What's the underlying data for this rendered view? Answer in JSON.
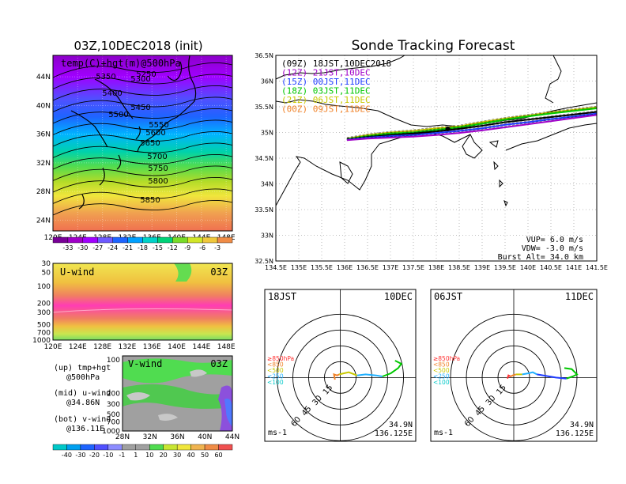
{
  "left_title": "03Z,10DEC2018 (init)",
  "right_title": "Sonde Tracking Forecast",
  "colors": {
    "c09": "#000000",
    "c12": "#a000c8",
    "c15": "#1e3cff",
    "c18": "#00c800",
    "c21": "#c8c800",
    "c00": "#f08228"
  },
  "chart_data": [
    {
      "id": "map500",
      "type": "heatmap",
      "title": "temp(C)+hgt(m)@500hPa",
      "x_ticks": [
        "120E",
        "124E",
        "128E",
        "132E",
        "136E",
        "140E",
        "144E",
        "148E"
      ],
      "y_ticks": [
        "44N",
        "40N",
        "36N",
        "32N",
        "28N",
        "24N"
      ],
      "xlim": [
        120,
        149
      ],
      "ylim": [
        22.5,
        47
      ],
      "contour_labels": [
        "5250",
        "5300",
        "5350",
        "5400",
        "5450",
        "5500",
        "5550",
        "5600",
        "5650",
        "5700",
        "5750",
        "5800",
        "5850"
      ],
      "colorbar_labels": [
        "-33",
        "-30",
        "-27",
        "-24",
        "-21",
        "-18",
        "-15",
        "-12",
        "-9",
        "-6",
        "-3"
      ]
    },
    {
      "id": "uwind",
      "type": "heatmap",
      "title": "U-wind",
      "time_label": "03Z",
      "y_ticks": [
        "30",
        "50",
        "100",
        "200",
        "300",
        "500",
        "700",
        "1000"
      ],
      "x_ticks": [
        "120E",
        "124E",
        "128E",
        "132E",
        "136E",
        "140E",
        "144E",
        "148E"
      ]
    },
    {
      "id": "vwind",
      "type": "heatmap",
      "title": "V-wind",
      "time_label": "03Z",
      "y_ticks": [
        "100",
        "200",
        "300",
        "500",
        "700",
        "1000"
      ],
      "x_ticks": [
        "28N",
        "32N",
        "36N",
        "40N",
        "44N"
      ],
      "colorbar_labels": [
        "-40",
        "-30",
        "-20",
        "-10",
        "-1",
        "1",
        "10",
        "20",
        "30",
        "40",
        "50",
        "60"
      ]
    },
    {
      "id": "track",
      "type": "line",
      "x_ticks": [
        "134.5E",
        "135E",
        "135.5E",
        "136E",
        "136.5E",
        "137E",
        "137.5E",
        "138E",
        "138.5E",
        "139E",
        "139.5E",
        "140E",
        "140.5E",
        "141E",
        "141.5E"
      ],
      "y_ticks": [
        "36.5N",
        "36N",
        "35.5N",
        "35N",
        "34.5N",
        "34N",
        "33.5N",
        "33N",
        "32.5N"
      ],
      "xlim": [
        134.5,
        141.5
      ],
      "ylim": [
        32.5,
        36.5
      ],
      "legend": [
        {
          "label": "(09Z)  18JST,10DEC2018",
          "key": "c09"
        },
        {
          "label": "(12Z)  21JST,10DEC",
          "key": "c12"
        },
        {
          "label": "(15Z)  00JST,11DEC",
          "key": "c15"
        },
        {
          "label": "(18Z)  03JST,11DEC",
          "key": "c18"
        },
        {
          "label": "(21Z)  06JST,11DEC",
          "key": "c21"
        },
        {
          "label": "(00Z)  09JST,11DEC",
          "key": "c00"
        }
      ],
      "series": [
        {
          "key": "c21",
          "x": [
            136.05,
            136.5,
            137.0,
            137.5,
            138.0,
            138.5,
            139.0,
            139.5,
            140.0,
            140.5,
            141.0,
            141.5
          ],
          "y": [
            34.88,
            34.95,
            35.0,
            35.03,
            35.08,
            35.12,
            35.2,
            35.27,
            35.33,
            35.39,
            35.44,
            35.49
          ]
        },
        {
          "key": "c18",
          "x": [
            136.05,
            136.5,
            137.0,
            137.5,
            138.0,
            138.5,
            139.0,
            139.5,
            140.0,
            140.5,
            141.0,
            141.5
          ],
          "y": [
            34.87,
            34.93,
            34.98,
            35.0,
            35.05,
            35.1,
            35.17,
            35.25,
            35.31,
            35.37,
            35.42,
            35.47
          ]
        },
        {
          "key": "c09",
          "x": [
            136.05,
            136.5,
            137.0,
            137.5,
            138.0,
            138.5,
            139.0,
            139.5,
            140.0,
            140.5,
            141.0,
            141.5
          ],
          "y": [
            34.86,
            34.91,
            34.95,
            34.98,
            35.02,
            35.07,
            35.13,
            35.2,
            35.25,
            35.3,
            35.35,
            35.4
          ]
        },
        {
          "key": "c15",
          "x": [
            136.05,
            136.5,
            137.0,
            137.5,
            138.0,
            138.5,
            139.0,
            139.5,
            140.0,
            140.5,
            141.0,
            141.5
          ],
          "y": [
            34.86,
            34.9,
            34.93,
            34.95,
            34.99,
            35.03,
            35.08,
            35.15,
            35.2,
            35.26,
            35.31,
            35.37
          ]
        },
        {
          "key": "c12",
          "x": [
            136.05,
            136.5,
            137.0,
            137.5,
            138.0,
            138.5,
            139.0,
            139.5,
            140.0,
            140.5,
            141.0,
            141.5
          ],
          "y": [
            34.85,
            34.88,
            34.9,
            34.92,
            34.95,
            34.99,
            35.04,
            35.1,
            35.16,
            35.22,
            35.28,
            35.34
          ]
        }
      ],
      "marker": {
        "x": 138.25,
        "y": 35.07
      },
      "info": [
        "VUP=  6.0 m/s",
        "VDW= -3.0 m/s",
        "Burst Alt= 34.0 km"
      ]
    },
    {
      "id": "hodo1",
      "type": "line",
      "time_label": "18JST",
      "date_label": "10DEC",
      "ring_labels": [
        "15",
        "30",
        "45",
        "60"
      ],
      "unit": "ms-1",
      "position": [
        "34.9N",
        "136.125E"
      ],
      "legend": [
        "≥850hPa",
        "<850",
        "<500",
        "<250",
        "<100"
      ],
      "legend_colors": [
        "#ff3030",
        "#f08228",
        "#c8c800",
        "#20b0ff",
        "#00c8c8"
      ],
      "segments": [
        {
          "color": "#f08228",
          "pts": [
            [
              -5,
              -2
            ],
            [
              -6,
              3
            ],
            [
              -3,
              2
            ],
            [
              -1,
              3
            ]
          ]
        },
        {
          "color": "#c8c800",
          "pts": [
            [
              -1,
              3
            ],
            [
              8,
              5
            ],
            [
              16,
              2
            ]
          ]
        },
        {
          "color": "#20b0ff",
          "pts": [
            [
              16,
              2
            ],
            [
              24,
              3
            ],
            [
              34,
              2
            ],
            [
              40,
              1
            ]
          ]
        },
        {
          "color": "#00c800",
          "pts": [
            [
              40,
              1
            ],
            [
              48,
              4
            ],
            [
              55,
              9
            ],
            [
              58,
              13
            ],
            [
              52,
              16
            ]
          ]
        }
      ]
    },
    {
      "id": "hodo2",
      "type": "line",
      "time_label": "06JST",
      "date_label": "11DEC",
      "ring_labels": [
        "15",
        "30",
        "45",
        "60"
      ],
      "unit": "ms-1",
      "position": [
        "34.9N",
        "136.125E"
      ],
      "legend": [
        "≥850hPa",
        "<850",
        "<500",
        "<250",
        "<100"
      ],
      "legend_colors": [
        "#ff3030",
        "#f08228",
        "#c8c800",
        "#20b0ff",
        "#00c8c8"
      ],
      "segments": [
        {
          "color": "#ff3030",
          "pts": [
            [
              -6,
              -1
            ],
            [
              -5,
              2
            ],
            [
              -3,
              1
            ]
          ]
        },
        {
          "color": "#f08228",
          "pts": [
            [
              -3,
              1
            ],
            [
              -1,
              2
            ],
            [
              2,
              3
            ]
          ]
        },
        {
          "color": "#c8c800",
          "pts": [
            [
              2,
              3
            ],
            [
              8,
              3
            ]
          ]
        },
        {
          "color": "#20b0ff",
          "pts": [
            [
              8,
              3
            ],
            [
              14,
              4
            ],
            [
              18,
              5
            ],
            [
              22,
              3
            ]
          ]
        },
        {
          "color": "#1e3cff",
          "pts": [
            [
              22,
              3
            ],
            [
              40,
              0
            ],
            [
              50,
              -1
            ]
          ]
        },
        {
          "color": "#00c800",
          "pts": [
            [
              50,
              -1
            ],
            [
              56,
              1
            ],
            [
              60,
              3
            ],
            [
              55,
              8
            ],
            [
              48,
              9
            ]
          ]
        }
      ]
    }
  ],
  "side_text": [
    "(up) tmp+hgt",
    "@500hPa",
    "(mid) u-wind",
    "@34.86N",
    "(bot) v-wind",
    "@136.11E"
  ]
}
